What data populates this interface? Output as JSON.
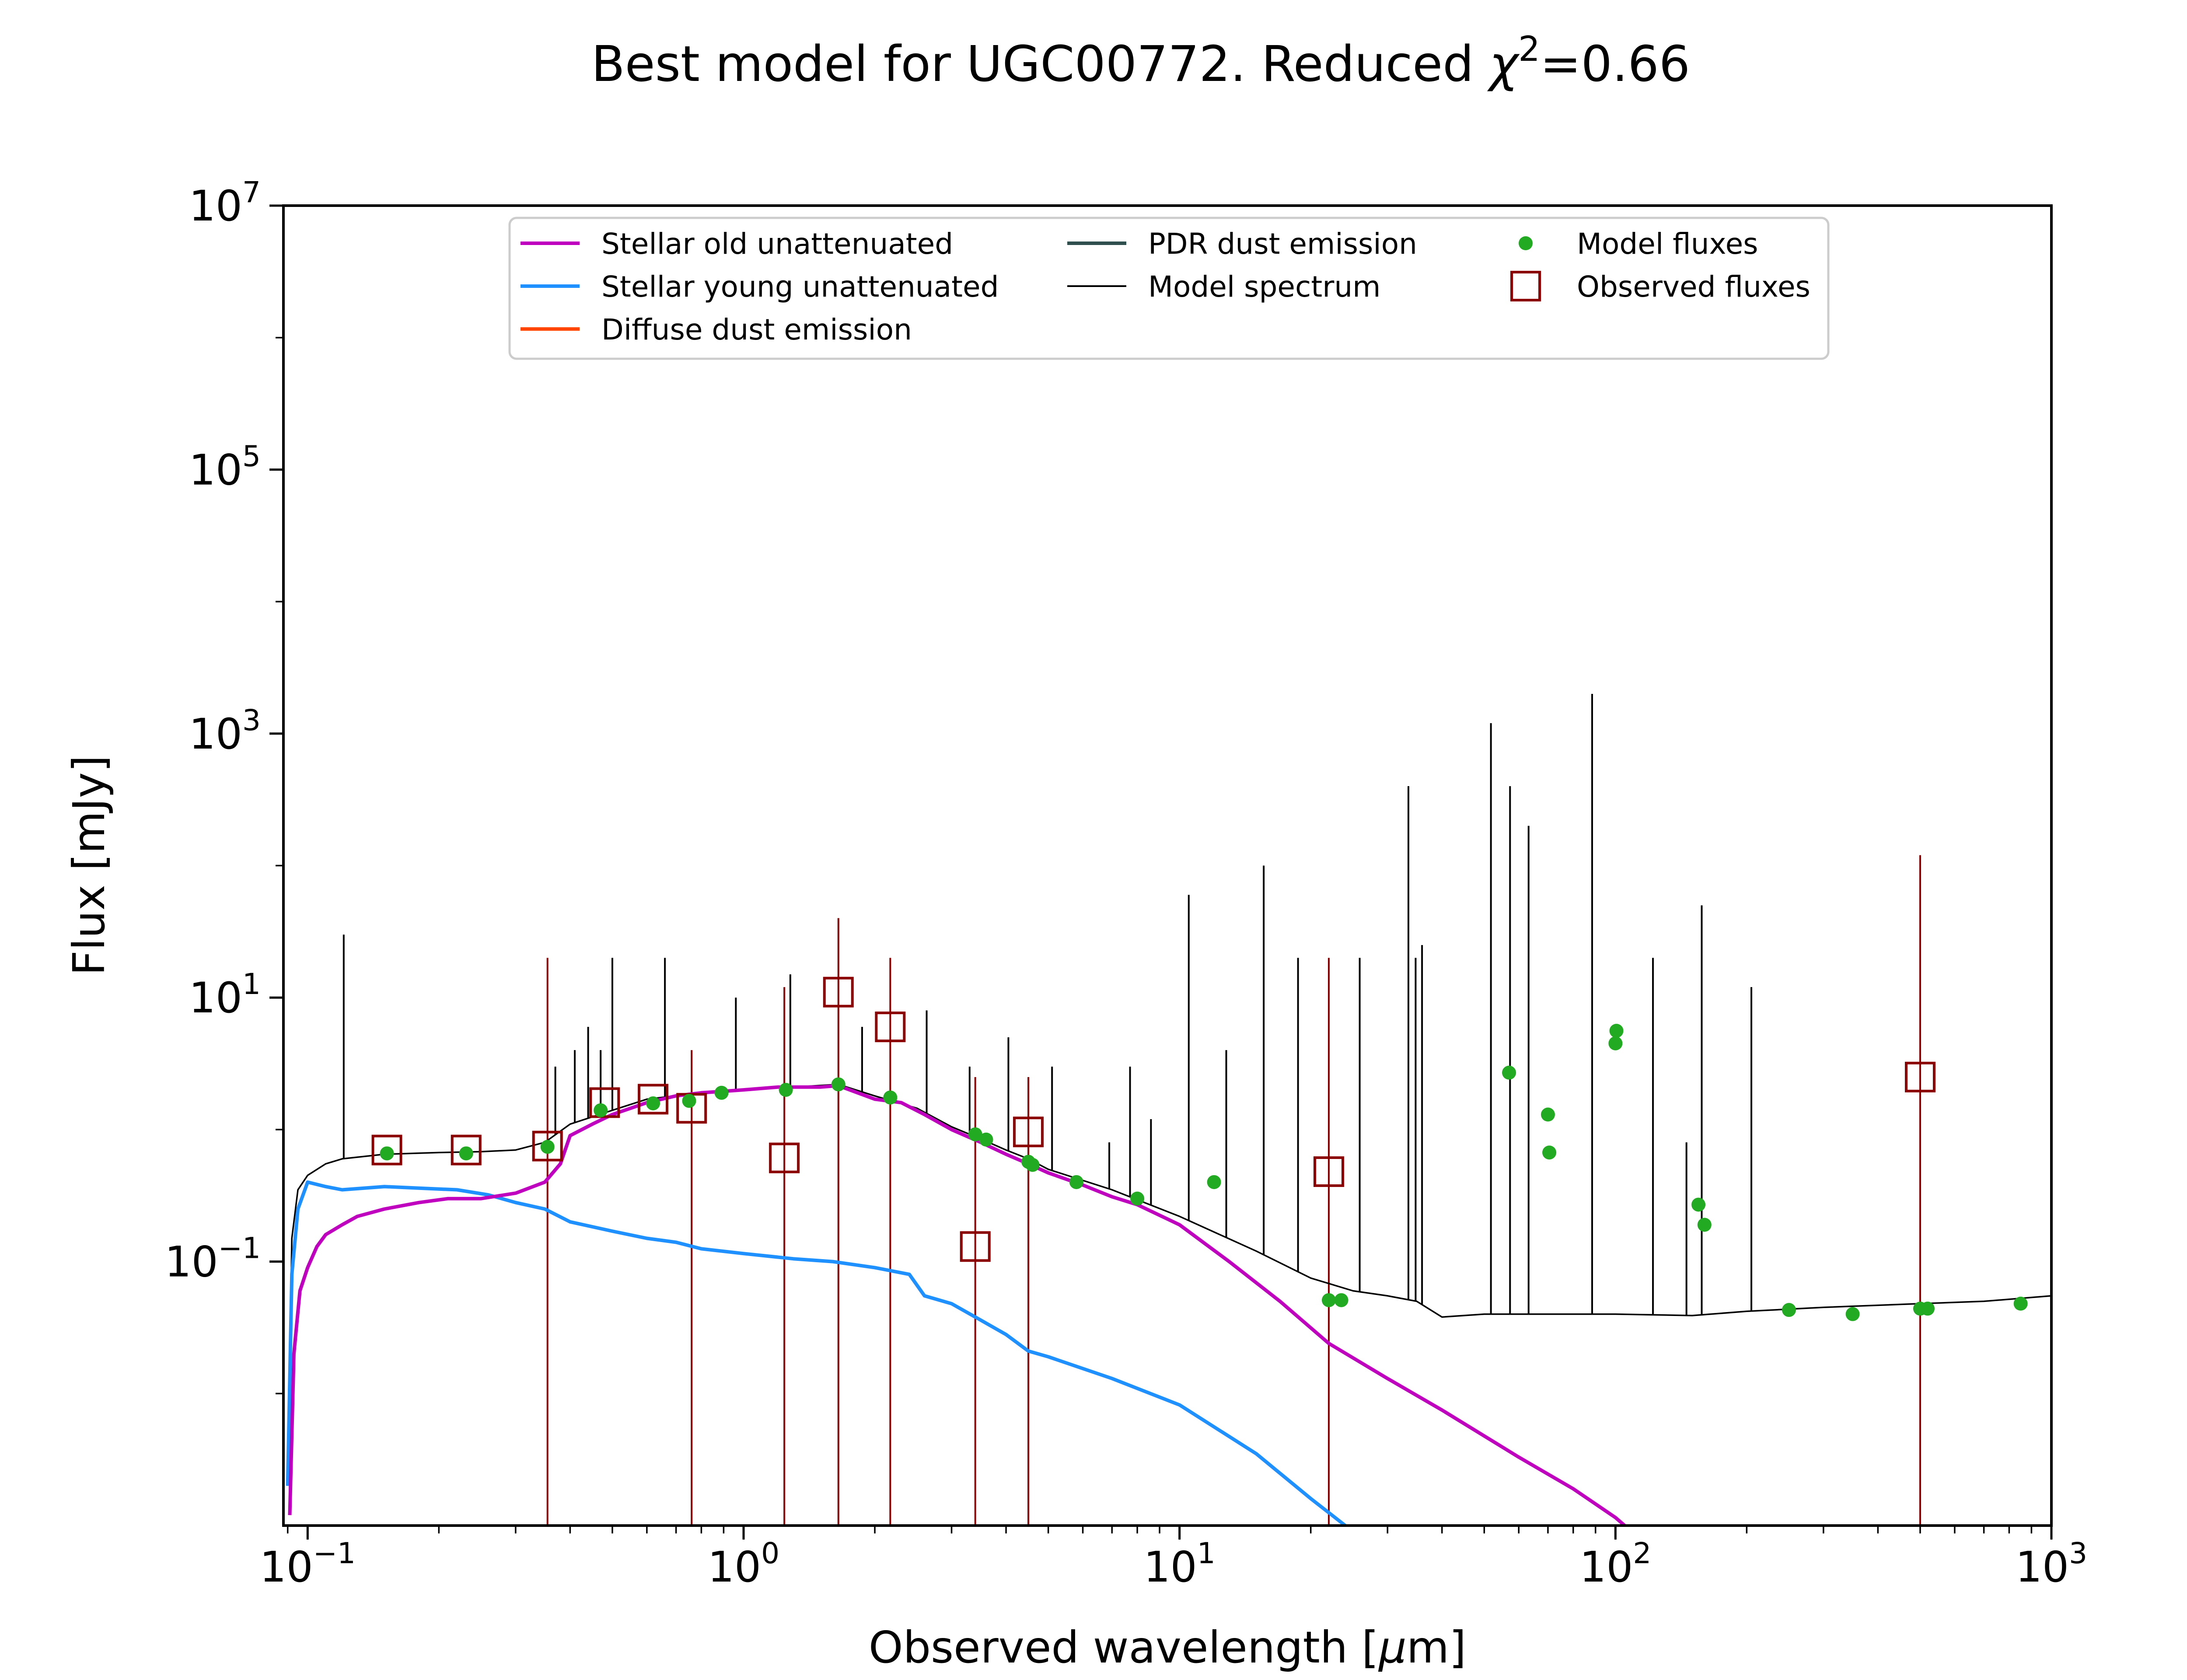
{
  "chart_data": {
    "type": "line",
    "title": "Best model for UGC00772. Reduced χ²=0.66",
    "title_main": "Best model for UGC00772. Reduced ",
    "title_chi": "χ",
    "title_sup": "2",
    "title_tail": "=0.66",
    "xlabel": "Observed wavelength [μm]",
    "xlabel_main": "Observed wavelength [",
    "xlabel_mu": "μ",
    "xlabel_tail": "m]",
    "ylabel": "Flux [mJy]",
    "x_scale": "log",
    "y_scale": "log",
    "xlim": [
      0.088,
      1000
    ],
    "ylim": [
      0.001,
      10000000
    ],
    "x_ticks": [
      {
        "base": "10",
        "exp": "−1",
        "value": 0.1
      },
      {
        "base": "10",
        "exp": "0",
        "value": 1
      },
      {
        "base": "10",
        "exp": "1",
        "value": 10
      },
      {
        "base": "10",
        "exp": "2",
        "value": 100
      },
      {
        "base": "10",
        "exp": "3",
        "value": 1000
      }
    ],
    "y_ticks": [
      {
        "base": "10",
        "exp": "−1",
        "value": 0.1
      },
      {
        "base": "10",
        "exp": "1",
        "value": 10
      },
      {
        "base": "10",
        "exp": "3",
        "value": 1000
      },
      {
        "base": "10",
        "exp": "5",
        "value": 100000
      },
      {
        "base": "10",
        "exp": "7",
        "value": 10000000
      }
    ],
    "grid": false,
    "legend_position": "upper-center",
    "legend": [
      {
        "label": "Stellar old unattenuated",
        "color": "#bf00bf",
        "kind": "line"
      },
      {
        "label": "Stellar young unattenuated",
        "color": "#1e90ff",
        "kind": "line"
      },
      {
        "label": "Diffuse dust emission",
        "color": "#ff4500",
        "kind": "line"
      },
      {
        "label": "PDR dust emission",
        "color": "#2f4f4f",
        "kind": "line"
      },
      {
        "label": "Model spectrum",
        "color": "#000000",
        "kind": "thin-line"
      },
      {
        "label": "Model fluxes",
        "color": "#22aa22",
        "kind": "dot"
      },
      {
        "label": "Observed fluxes",
        "color": "#8b0000",
        "kind": "square"
      }
    ],
    "series": [
      {
        "name": "Stellar old unattenuated",
        "color": "#bf00bf",
        "points": [
          [
            0.091,
            0.0012
          ],
          [
            0.093,
            0.02
          ],
          [
            0.096,
            0.06
          ],
          [
            0.1,
            0.09
          ],
          [
            0.105,
            0.13
          ],
          [
            0.11,
            0.16
          ],
          [
            0.12,
            0.19
          ],
          [
            0.13,
            0.22
          ],
          [
            0.15,
            0.25
          ],
          [
            0.18,
            0.28
          ],
          [
            0.21,
            0.3
          ],
          [
            0.25,
            0.3
          ],
          [
            0.3,
            0.33
          ],
          [
            0.35,
            0.4
          ],
          [
            0.38,
            0.55
          ],
          [
            0.4,
            0.9
          ],
          [
            0.45,
            1.1
          ],
          [
            0.5,
            1.3
          ],
          [
            0.6,
            1.6
          ],
          [
            0.7,
            1.8
          ],
          [
            0.8,
            1.9
          ],
          [
            0.9,
            1.95
          ],
          [
            1.0,
            2.0
          ],
          [
            1.2,
            2.1
          ],
          [
            1.5,
            2.1
          ],
          [
            1.65,
            2.15
          ],
          [
            2.0,
            1.7
          ],
          [
            2.3,
            1.6
          ],
          [
            2.6,
            1.3
          ],
          [
            3.0,
            1.0
          ],
          [
            3.5,
            0.8
          ],
          [
            4.0,
            0.65
          ],
          [
            4.5,
            0.55
          ],
          [
            5.0,
            0.47
          ],
          [
            6.0,
            0.38
          ],
          [
            7.0,
            0.31
          ],
          [
            8.0,
            0.27
          ],
          [
            10.0,
            0.19
          ],
          [
            13.0,
            0.1
          ],
          [
            17.0,
            0.05
          ],
          [
            22.0,
            0.024
          ],
          [
            30.0,
            0.013
          ],
          [
            40.0,
            0.0075
          ],
          [
            60.0,
            0.0033
          ],
          [
            80.0,
            0.0019
          ],
          [
            100.0,
            0.00115
          ],
          [
            105.0,
            0.001
          ]
        ]
      },
      {
        "name": "Stellar young unattenuated",
        "color": "#1e90ff",
        "points": [
          [
            0.09,
            0.002
          ],
          [
            0.092,
            0.08
          ],
          [
            0.095,
            0.25
          ],
          [
            0.1,
            0.4
          ],
          [
            0.11,
            0.37
          ],
          [
            0.12,
            0.35
          ],
          [
            0.15,
            0.37
          ],
          [
            0.18,
            0.36
          ],
          [
            0.22,
            0.35
          ],
          [
            0.26,
            0.32
          ],
          [
            0.3,
            0.28
          ],
          [
            0.35,
            0.25
          ],
          [
            0.4,
            0.2
          ],
          [
            0.5,
            0.17
          ],
          [
            0.6,
            0.15
          ],
          [
            0.7,
            0.14
          ],
          [
            0.8,
            0.125
          ],
          [
            1.0,
            0.115
          ],
          [
            1.3,
            0.105
          ],
          [
            1.6,
            0.1
          ],
          [
            2.0,
            0.09
          ],
          [
            2.4,
            0.08
          ],
          [
            2.6,
            0.055
          ],
          [
            3.0,
            0.048
          ],
          [
            3.5,
            0.036
          ],
          [
            4.0,
            0.028
          ],
          [
            4.5,
            0.021
          ],
          [
            5.0,
            0.019
          ],
          [
            7.0,
            0.013
          ],
          [
            10.0,
            0.0082
          ],
          [
            15.0,
            0.0035
          ],
          [
            20.0,
            0.0016
          ],
          [
            24.0,
            0.001
          ]
        ]
      },
      {
        "name": "Model spectrum",
        "color": "#000000",
        "points": [
          [
            0.09,
            0.002
          ],
          [
            0.092,
            0.15
          ],
          [
            0.095,
            0.35
          ],
          [
            0.1,
            0.45
          ],
          [
            0.11,
            0.55
          ],
          [
            0.12,
            0.6
          ],
          [
            0.15,
            0.65
          ],
          [
            0.2,
            0.67
          ],
          [
            0.25,
            0.68
          ],
          [
            0.3,
            0.7
          ],
          [
            0.35,
            0.8
          ],
          [
            0.4,
            1.1
          ],
          [
            0.5,
            1.4
          ],
          [
            0.6,
            1.7
          ],
          [
            0.8,
            1.9
          ],
          [
            1.0,
            2.0
          ],
          [
            1.3,
            2.1
          ],
          [
            1.65,
            2.2
          ],
          [
            2.0,
            1.8
          ],
          [
            2.5,
            1.45
          ],
          [
            3.0,
            1.05
          ],
          [
            3.5,
            0.85
          ],
          [
            4.0,
            0.7
          ],
          [
            4.5,
            0.6
          ],
          [
            5.0,
            0.5
          ],
          [
            7.0,
            0.35
          ],
          [
            10.0,
            0.22
          ],
          [
            15.0,
            0.12
          ],
          [
            20.0,
            0.075
          ],
          [
            25.0,
            0.06
          ],
          [
            30.0,
            0.055
          ],
          [
            35.0,
            0.05
          ],
          [
            40.0,
            0.038
          ],
          [
            50.0,
            0.04
          ],
          [
            60.0,
            0.04
          ],
          [
            80.0,
            0.04
          ],
          [
            100.0,
            0.04
          ],
          [
            150.0,
            0.039
          ],
          [
            200.0,
            0.042
          ],
          [
            300.0,
            0.045
          ],
          [
            500.0,
            0.048
          ],
          [
            700.0,
            0.05
          ],
          [
            1000.0,
            0.055
          ]
        ],
        "spikes": [
          [
            0.121,
            30
          ],
          [
            0.37,
            3
          ],
          [
            0.41,
            4
          ],
          [
            0.44,
            6
          ],
          [
            0.47,
            4
          ],
          [
            0.5,
            20
          ],
          [
            0.66,
            20
          ],
          [
            0.96,
            10
          ],
          [
            1.28,
            15
          ],
          [
            1.87,
            6
          ],
          [
            2.63,
            8
          ],
          [
            3.3,
            3
          ],
          [
            4.05,
            5
          ],
          [
            5.1,
            3
          ],
          [
            6.9,
            0.8
          ],
          [
            7.7,
            3
          ],
          [
            8.6,
            1.2
          ],
          [
            10.5,
            60
          ],
          [
            12.8,
            4
          ],
          [
            15.6,
            100
          ],
          [
            18.7,
            20
          ],
          [
            25.9,
            20
          ],
          [
            33.5,
            400
          ],
          [
            34.8,
            20
          ],
          [
            36.0,
            25
          ],
          [
            51.8,
            1200
          ],
          [
            57.3,
            400
          ],
          [
            63.2,
            200
          ],
          [
            88.4,
            2000
          ],
          [
            121.9,
            20
          ],
          [
            145.5,
            0.8
          ],
          [
            157.7,
            50
          ],
          [
            205.0,
            12
          ]
        ]
      },
      {
        "name": "Diffuse dust emission",
        "color": "#ff4500",
        "points": []
      },
      {
        "name": "PDR dust emission",
        "color": "#2f4f4f",
        "points": []
      }
    ],
    "model_fluxes": [
      [
        0.152,
        0.66
      ],
      [
        0.231,
        0.66
      ],
      [
        0.355,
        0.74
      ],
      [
        0.47,
        1.4
      ],
      [
        0.62,
        1.58
      ],
      [
        0.75,
        1.65
      ],
      [
        0.89,
        1.9
      ],
      [
        1.25,
        2.0
      ],
      [
        1.65,
        2.2
      ],
      [
        2.17,
        1.75
      ],
      [
        3.4,
        0.92
      ],
      [
        3.6,
        0.84
      ],
      [
        4.5,
        0.57
      ],
      [
        4.6,
        0.54
      ],
      [
        5.8,
        0.4
      ],
      [
        8.0,
        0.3
      ],
      [
        12.0,
        0.4
      ],
      [
        22.0,
        0.051
      ],
      [
        23.5,
        0.051
      ],
      [
        57.0,
        2.7
      ],
      [
        70.0,
        1.3
      ],
      [
        70.5,
        0.67
      ],
      [
        100.0,
        4.5
      ],
      [
        100.5,
        5.6
      ],
      [
        155.0,
        0.27
      ],
      [
        160.0,
        0.19
      ],
      [
        250.0,
        0.043
      ],
      [
        350.0,
        0.04
      ],
      [
        500.0,
        0.044
      ],
      [
        520.0,
        0.044
      ],
      [
        850.0,
        0.048
      ]
    ],
    "observed_fluxes": [
      [
        0.152,
        0.7
      ],
      [
        0.231,
        0.7
      ],
      [
        0.355,
        0.75
      ],
      [
        0.48,
        1.6
      ],
      [
        0.62,
        1.7
      ],
      [
        0.76,
        1.45
      ],
      [
        1.24,
        0.61
      ],
      [
        1.65,
        11.0
      ],
      [
        2.17,
        6.0
      ],
      [
        3.4,
        0.13
      ],
      [
        4.5,
        0.96
      ],
      [
        22.0,
        0.48
      ],
      [
        500.0,
        2.5
      ]
    ],
    "observed_errorbars": [
      [
        0.355,
        20
      ],
      [
        0.76,
        4
      ],
      [
        1.24,
        12
      ],
      [
        1.65,
        40
      ],
      [
        2.17,
        20
      ],
      [
        3.4,
        2.5
      ],
      [
        4.5,
        2.5
      ],
      [
        22.0,
        20
      ],
      [
        500.0,
        120
      ]
    ],
    "outline_ticks": [
      0.1,
      1,
      10,
      100,
      1000
    ]
  }
}
